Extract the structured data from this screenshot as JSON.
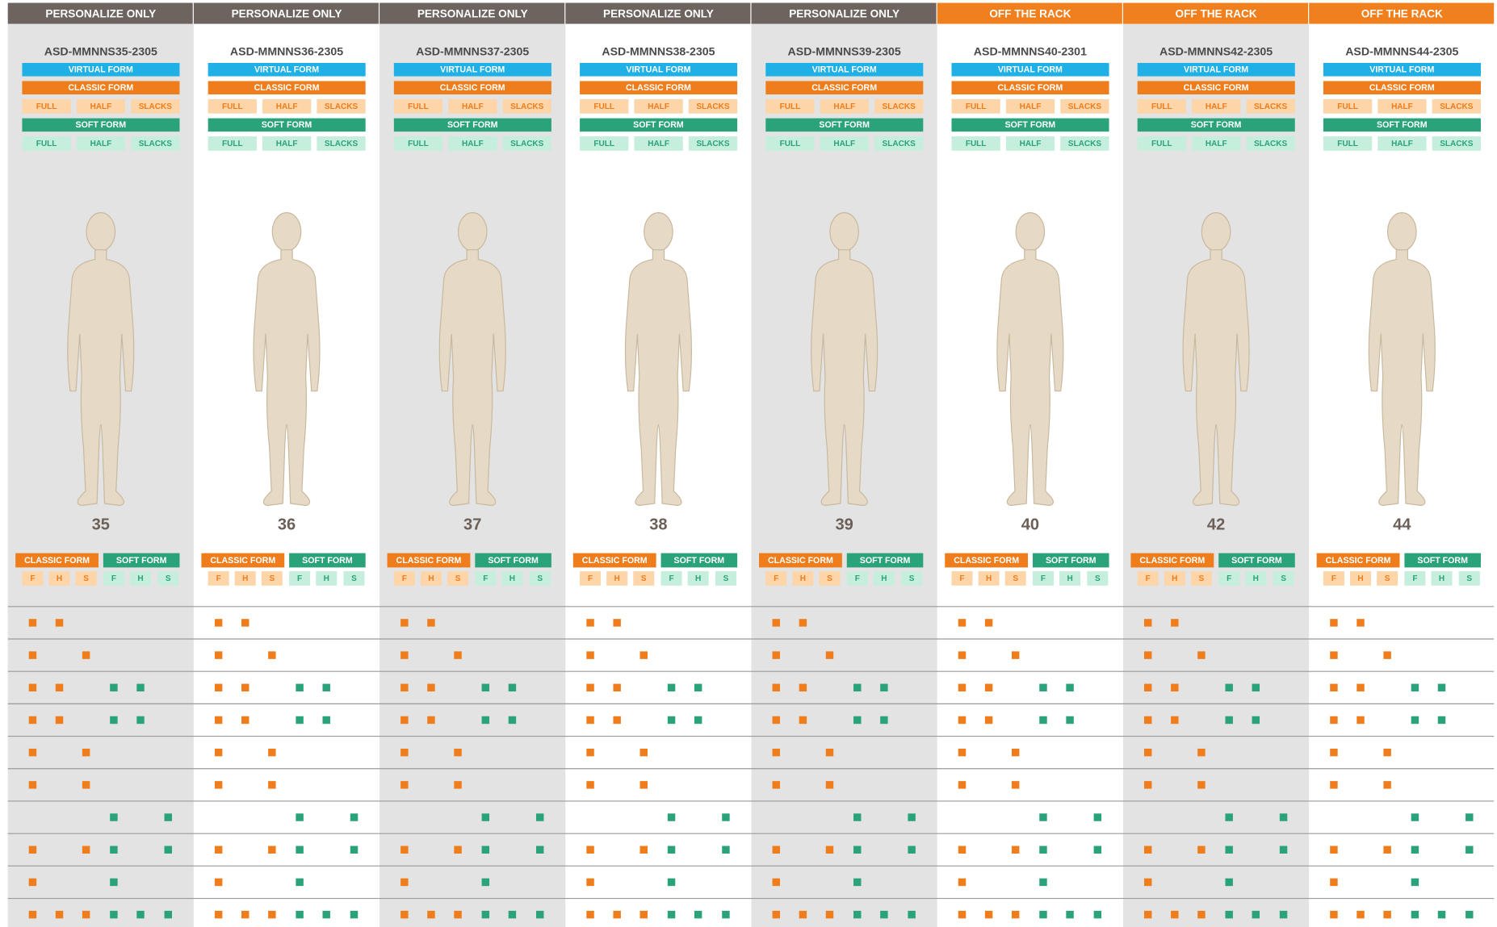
{
  "labels": {
    "virtual": "VIRTUAL FORM",
    "classic": "CLASSIC FORM",
    "soft": "SOFT FORM",
    "options": [
      "FULL",
      "HALF",
      "SLACKS"
    ],
    "letters": [
      "F",
      "H",
      "S"
    ]
  },
  "columns": [
    {
      "status": "PERSONALIZE ONLY",
      "sku": "ASD-MMNNS35-2305",
      "size": 35
    },
    {
      "status": "PERSONALIZE ONLY",
      "sku": "ASD-MMNNS36-2305",
      "size": 36
    },
    {
      "status": "PERSONALIZE ONLY",
      "sku": "ASD-MMNNS37-2305",
      "size": 37
    },
    {
      "status": "PERSONALIZE ONLY",
      "sku": "ASD-MMNNS38-2305",
      "size": 38
    },
    {
      "status": "PERSONALIZE ONLY",
      "sku": "ASD-MMNNS39-2305",
      "size": 39
    },
    {
      "status": "OFF THE RACK",
      "sku": "ASD-MMNNS40-2301",
      "size": 40
    },
    {
      "status": "OFF THE RACK",
      "sku": "ASD-MMNNS42-2305",
      "size": 42
    },
    {
      "status": "OFF THE RACK",
      "sku": "ASD-MMNNS44-2305",
      "size": 44
    }
  ],
  "availability": [
    [
      1,
      1,
      0,
      0,
      0,
      0
    ],
    [
      1,
      0,
      1,
      0,
      0,
      0
    ],
    [
      1,
      1,
      0,
      1,
      1,
      0
    ],
    [
      1,
      1,
      0,
      1,
      1,
      0
    ],
    [
      1,
      0,
      1,
      0,
      0,
      0
    ],
    [
      1,
      0,
      1,
      0,
      0,
      0
    ],
    [
      0,
      0,
      0,
      1,
      0,
      1
    ],
    [
      1,
      0,
      1,
      1,
      0,
      1
    ],
    [
      1,
      0,
      0,
      1,
      0,
      0
    ],
    [
      1,
      1,
      1,
      1,
      1,
      1
    ]
  ]
}
